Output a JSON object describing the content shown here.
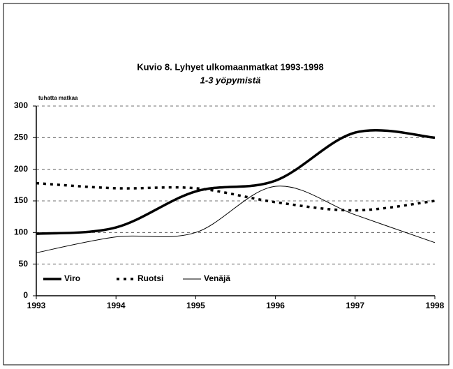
{
  "chart_data": {
    "type": "line",
    "title": "Kuvio 8.  Lyhyet ulkomaanmatkat 1993-1998",
    "subtitle": "1-3 yöpymistä",
    "y_label": "tuhatta matkaa",
    "x": [
      1993,
      1994,
      1995,
      1996,
      1997,
      1998
    ],
    "series": [
      {
        "name": "Viro",
        "color": "#000000",
        "style": "thick",
        "values": [
          98,
          108,
          165,
          182,
          258,
          250
        ]
      },
      {
        "name": "Ruotsi",
        "color": "#000000",
        "style": "dotted",
        "values": [
          178,
          170,
          170,
          148,
          135,
          150
        ]
      },
      {
        "name": "Venäjä",
        "color": "#000000",
        "style": "thin",
        "values": [
          68,
          93,
          100,
          173,
          128,
          84
        ]
      }
    ],
    "xlim": [
      1993,
      1998
    ],
    "xticks": [
      1993,
      1994,
      1995,
      1996,
      1997,
      1998
    ],
    "ylim": [
      0,
      300
    ],
    "yticks": [
      0,
      50,
      100,
      150,
      200,
      250,
      300
    ],
    "grid": true,
    "legend": "lower left"
  }
}
